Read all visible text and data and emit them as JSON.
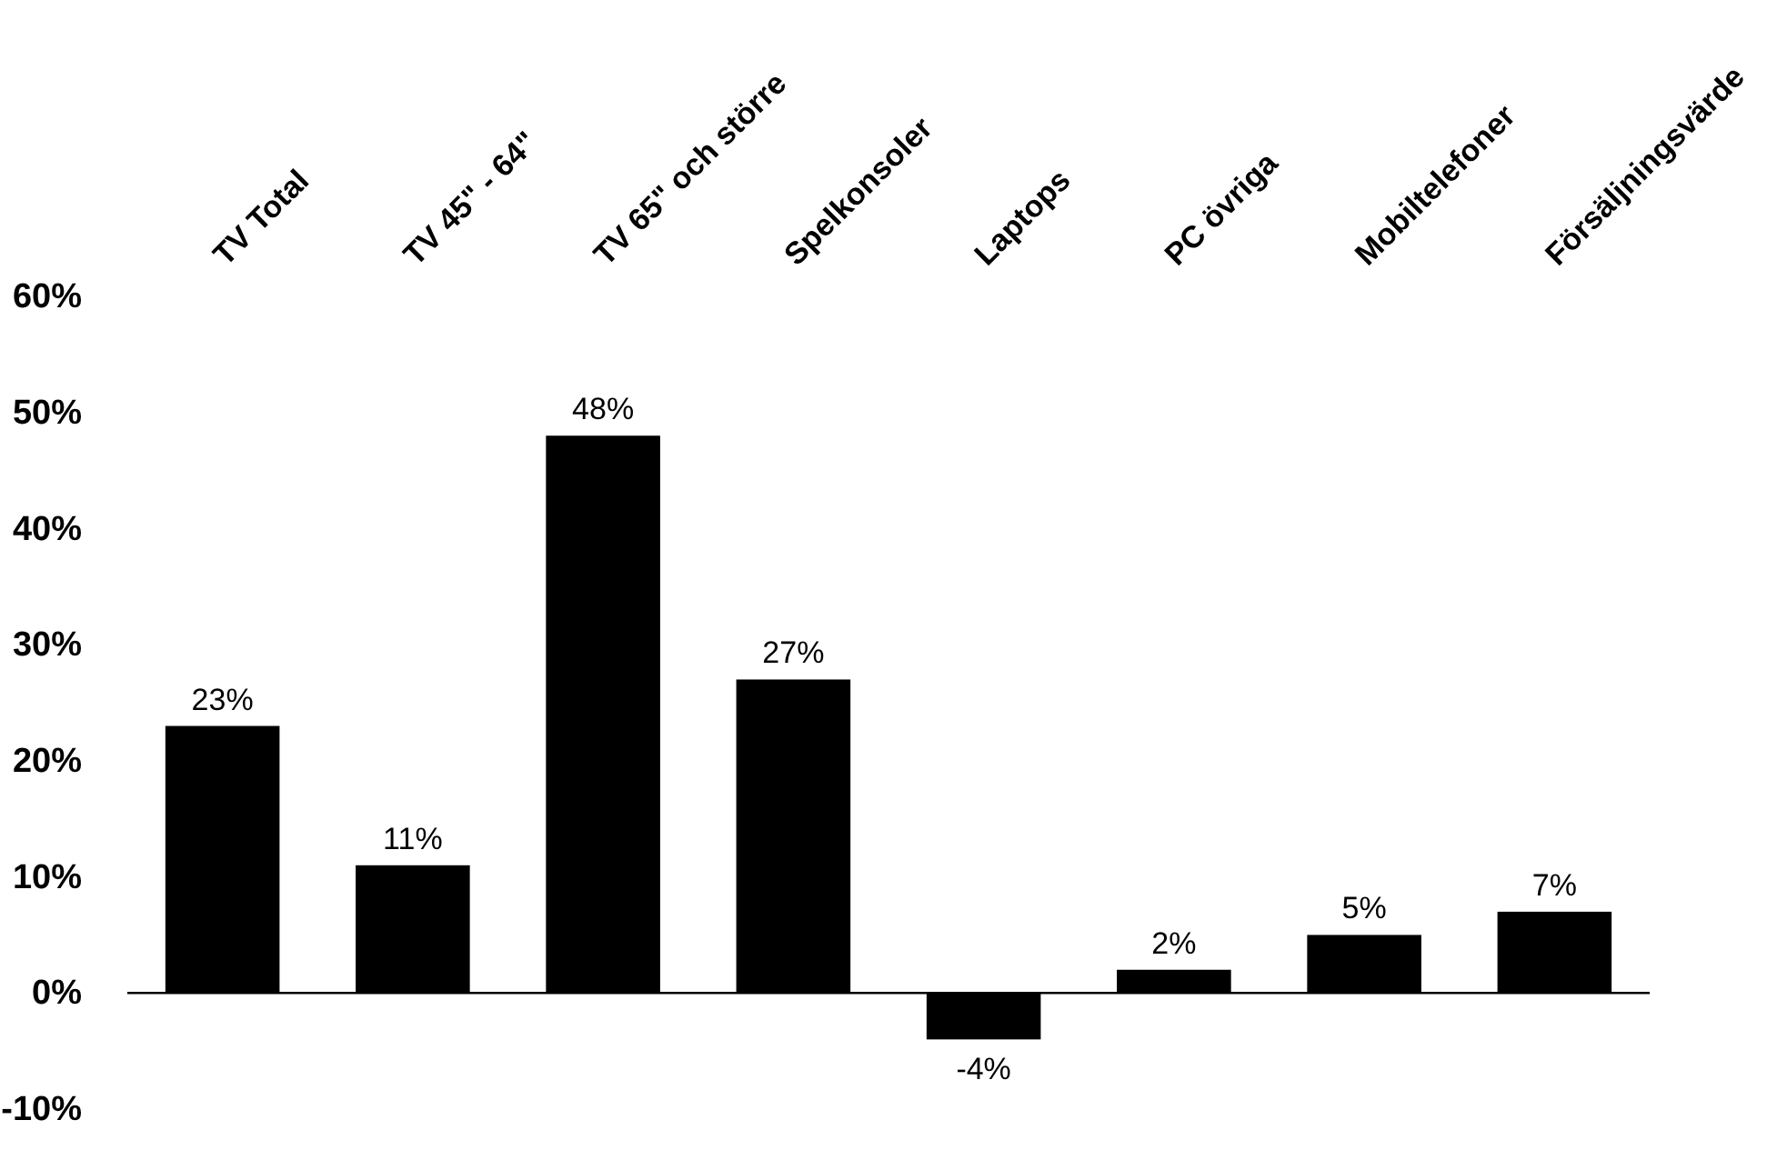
{
  "chart_data": {
    "type": "bar",
    "categories": [
      "TV Total",
      "TV 45\" - 64\"",
      "TV 65\" och större",
      "Spelkonsoler",
      "Laptops",
      "PC övriga",
      "Mobiltelefoner",
      "Försäljningsvärde"
    ],
    "values": [
      23,
      11,
      48,
      27,
      -4,
      2,
      5,
      7
    ],
    "value_labels": [
      "23%",
      "11%",
      "48%",
      "27%",
      "-4%",
      "2%",
      "5%",
      "7%"
    ],
    "color": "#000000",
    "ylim": [
      -10,
      60
    ],
    "yticks": [
      {
        "value": -10,
        "label": "-10%"
      },
      {
        "value": 0,
        "label": "0%"
      },
      {
        "value": 10,
        "label": "10%"
      },
      {
        "value": 20,
        "label": "20%"
      },
      {
        "value": 30,
        "label": "30%"
      },
      {
        "value": 40,
        "label": "40%"
      },
      {
        "value": 50,
        "label": "50%"
      },
      {
        "value": 60,
        "label": "60%"
      }
    ]
  }
}
